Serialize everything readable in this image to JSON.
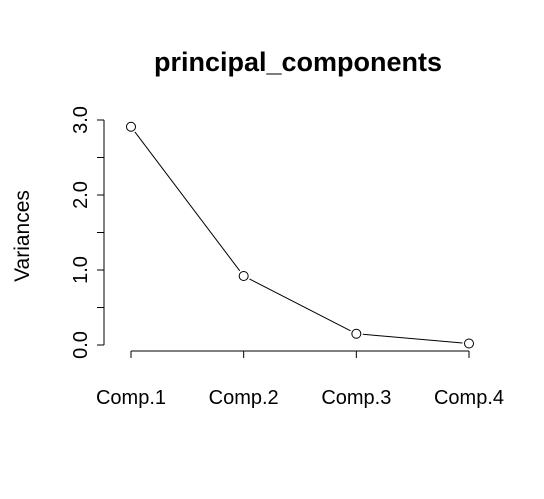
{
  "chart_data": {
    "type": "line",
    "title": "principal_components",
    "xlabel": "",
    "ylabel": "Variances",
    "categories": [
      "Comp.1",
      "Comp.2",
      "Comp.3",
      "Comp.4"
    ],
    "series": [
      {
        "values": [
          2.91,
          0.92,
          0.15,
          0.02
        ]
      }
    ],
    "ylim": [
      0,
      3.0
    ],
    "yticks": [
      0.0,
      1.0,
      2.0,
      3.0
    ],
    "yticks_minor": [
      0.5,
      1.5,
      2.5
    ],
    "ytick_labels": [
      "0.0",
      "1.0",
      "2.0",
      "3.0"
    ],
    "marker": "open-circle",
    "grid": false,
    "colors": {
      "line": "#000000",
      "marker_fill": "#ffffff",
      "marker_stroke": "#000000",
      "background": "#ffffff"
    }
  }
}
